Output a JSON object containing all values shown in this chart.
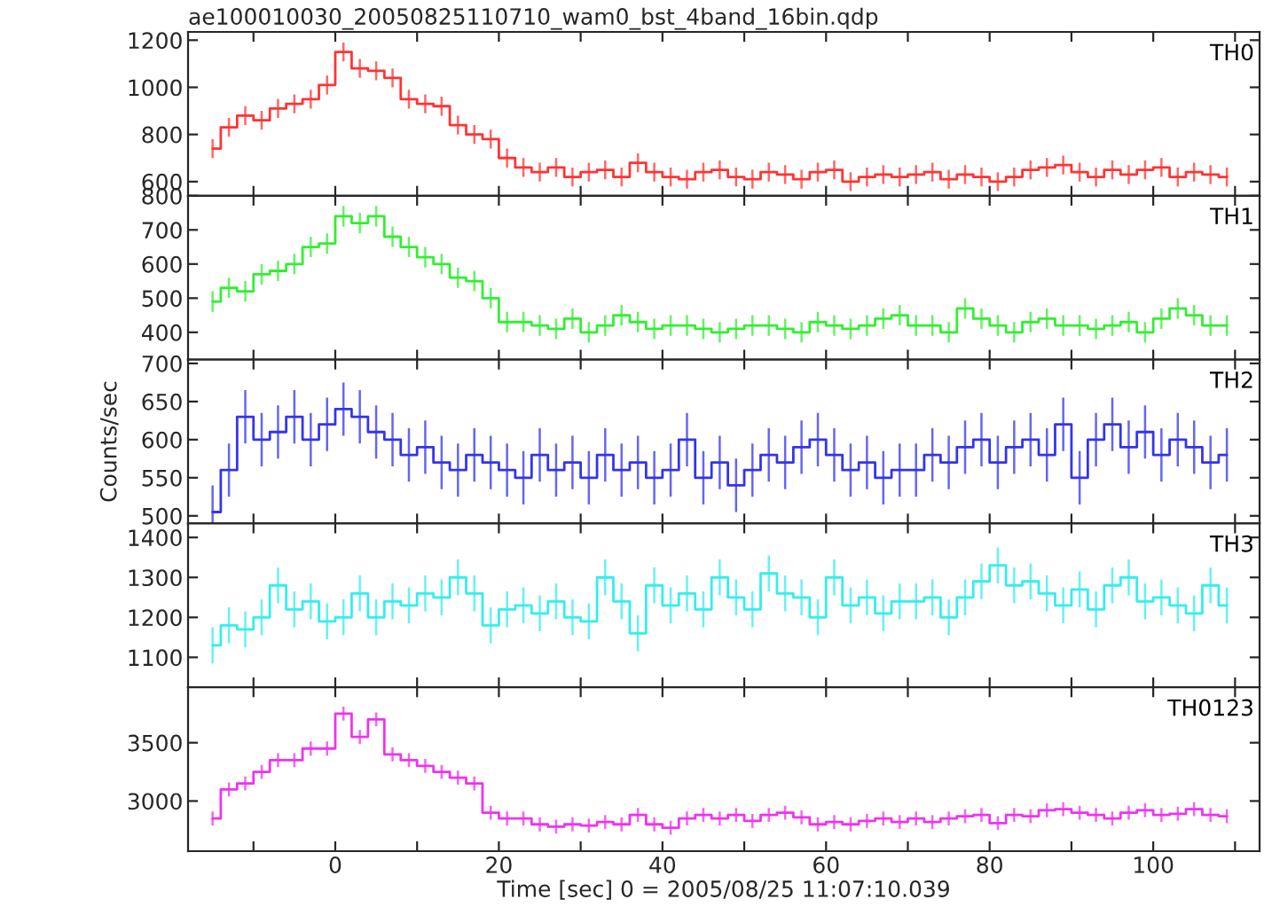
{
  "chart_data": [
    {
      "type": "step",
      "title": "ae100010030_20050825110710_wam0_bst_4band_16bin.qdp",
      "tick_labels": "y",
      "x": [
        -15,
        -13,
        -11,
        -9,
        -7,
        -5,
        -3,
        -1,
        1,
        3,
        5,
        7,
        9,
        11,
        13,
        15,
        17,
        19,
        21,
        23,
        25,
        27,
        29,
        31,
        33,
        35,
        37,
        39,
        41,
        43,
        45,
        47,
        49,
        51,
        53,
        55,
        57,
        59,
        61,
        63,
        65,
        67,
        69,
        71,
        73,
        75,
        77,
        79,
        81,
        83,
        85,
        87,
        89,
        91,
        93,
        95,
        97,
        99,
        101,
        103,
        105,
        107,
        109
      ],
      "xlim": [
        -18,
        113
      ],
      "xticks": [
        {
          "value": -10,
          "label": null
        },
        0,
        {
          "value": 10,
          "label": null
        },
        20,
        {
          "value": 30,
          "label": null
        },
        40,
        {
          "value": 50,
          "label": null
        },
        60,
        {
          "value": 70,
          "label": null
        },
        80,
        {
          "value": 90,
          "label": null
        },
        100,
        {
          "value": 110,
          "label": null
        }
      ],
      "ylim": [
        540,
        1235
      ],
      "yticks": [
        600,
        800,
        1000,
        1200
      ],
      "series": [
        {
          "name": "TH0",
          "color": "#ff3333",
          "values": [
            740,
            830,
            880,
            860,
            910,
            930,
            950,
            1010,
            1150,
            1080,
            1070,
            1040,
            950,
            930,
            920,
            840,
            800,
            780,
            700,
            660,
            640,
            660,
            620,
            640,
            650,
            620,
            680,
            640,
            620,
            610,
            640,
            650,
            620,
            610,
            640,
            630,
            610,
            640,
            650,
            600,
            620,
            630,
            620,
            630,
            640,
            610,
            630,
            620,
            600,
            620,
            650,
            660,
            670,
            640,
            620,
            650,
            630,
            650,
            660,
            620,
            640,
            630,
            620
          ],
          "errors": [
            40,
            40,
            40,
            40,
            40,
            40,
            40,
            40,
            40,
            40,
            40,
            40,
            40,
            40,
            40,
            40,
            40,
            40,
            40,
            40,
            40,
            40,
            40,
            40,
            40,
            40,
            40,
            40,
            40,
            40,
            40,
            40,
            40,
            40,
            40,
            40,
            40,
            40,
            40,
            40,
            40,
            40,
            40,
            40,
            40,
            40,
            40,
            40,
            40,
            40,
            40,
            40,
            40,
            40,
            40,
            40,
            40,
            40,
            40,
            40,
            40,
            40,
            40
          ]
        }
      ]
    },
    {
      "type": "step",
      "tick_labels": "y",
      "x": [
        -15,
        -13,
        -11,
        -9,
        -7,
        -5,
        -3,
        -1,
        1,
        3,
        5,
        7,
        9,
        11,
        13,
        15,
        17,
        19,
        21,
        23,
        25,
        27,
        29,
        31,
        33,
        35,
        37,
        39,
        41,
        43,
        45,
        47,
        49,
        51,
        53,
        55,
        57,
        59,
        61,
        63,
        65,
        67,
        69,
        71,
        73,
        75,
        77,
        79,
        81,
        83,
        85,
        87,
        89,
        91,
        93,
        95,
        97,
        99,
        101,
        103,
        105,
        107,
        109
      ],
      "xlim": [
        -18,
        113
      ],
      "xticks": [
        {
          "value": -10,
          "label": null
        },
        0,
        {
          "value": 10,
          "label": null
        },
        20,
        {
          "value": 30,
          "label": null
        },
        40,
        {
          "value": 50,
          "label": null
        },
        60,
        {
          "value": 70,
          "label": null
        },
        80,
        {
          "value": 90,
          "label": null
        },
        100,
        {
          "value": 110,
          "label": null
        }
      ],
      "ylim": [
        320,
        800
      ],
      "yticks": [
        400,
        500,
        600,
        700,
        800
      ],
      "series": [
        {
          "name": "TH1",
          "color": "#33ee33",
          "values": [
            490,
            530,
            520,
            570,
            580,
            600,
            650,
            660,
            740,
            720,
            740,
            680,
            650,
            620,
            600,
            560,
            550,
            500,
            430,
            430,
            420,
            410,
            440,
            400,
            420,
            450,
            430,
            410,
            420,
            420,
            410,
            400,
            410,
            420,
            420,
            410,
            400,
            430,
            420,
            410,
            420,
            440,
            450,
            420,
            420,
            400,
            470,
            440,
            420,
            400,
            430,
            440,
            420,
            420,
            410,
            420,
            430,
            400,
            440,
            470,
            450,
            420,
            420
          ],
          "errors": [
            30,
            30,
            30,
            30,
            30,
            30,
            30,
            30,
            30,
            30,
            30,
            30,
            30,
            30,
            30,
            30,
            30,
            30,
            30,
            30,
            30,
            30,
            30,
            30,
            30,
            30,
            30,
            30,
            30,
            30,
            30,
            30,
            30,
            30,
            30,
            30,
            30,
            30,
            30,
            30,
            30,
            30,
            30,
            30,
            30,
            30,
            30,
            30,
            30,
            30,
            30,
            30,
            30,
            30,
            30,
            30,
            30,
            30,
            30,
            30,
            30,
            30,
            30
          ]
        }
      ]
    },
    {
      "type": "step",
      "tick_labels": "y",
      "ylabel": "Counts/sec",
      "x": [
        -15,
        -13,
        -11,
        -9,
        -7,
        -5,
        -3,
        -1,
        1,
        3,
        5,
        7,
        9,
        11,
        13,
        15,
        17,
        19,
        21,
        23,
        25,
        27,
        29,
        31,
        33,
        35,
        37,
        39,
        41,
        43,
        45,
        47,
        49,
        51,
        53,
        55,
        57,
        59,
        61,
        63,
        65,
        67,
        69,
        71,
        73,
        75,
        77,
        79,
        81,
        83,
        85,
        87,
        89,
        91,
        93,
        95,
        97,
        99,
        101,
        103,
        105,
        107,
        109
      ],
      "xlim": [
        -18,
        113
      ],
      "xticks": [
        {
          "value": -10,
          "label": null
        },
        0,
        {
          "value": 10,
          "label": null
        },
        20,
        {
          "value": 30,
          "label": null
        },
        40,
        {
          "value": 50,
          "label": null
        },
        60,
        {
          "value": 70,
          "label": null
        },
        80,
        {
          "value": 90,
          "label": null
        },
        100,
        {
          "value": 110,
          "label": null
        }
      ],
      "ylim": [
        490,
        705
      ],
      "yticks": [
        500,
        550,
        600,
        650,
        700
      ],
      "series": [
        {
          "name": "TH2",
          "color": "#3333ee",
          "values": [
            505,
            560,
            630,
            600,
            610,
            630,
            600,
            620,
            640,
            630,
            610,
            600,
            580,
            590,
            570,
            560,
            580,
            570,
            560,
            550,
            580,
            560,
            570,
            550,
            580,
            560,
            570,
            550,
            560,
            600,
            550,
            570,
            540,
            560,
            580,
            570,
            590,
            600,
            580,
            560,
            570,
            550,
            560,
            560,
            580,
            570,
            590,
            600,
            570,
            590,
            600,
            580,
            620,
            550,
            600,
            620,
            590,
            610,
            580,
            600,
            590,
            570,
            580
          ],
          "errors": [
            35,
            35,
            35,
            35,
            35,
            35,
            35,
            35,
            35,
            35,
            35,
            35,
            35,
            35,
            35,
            35,
            35,
            35,
            35,
            35,
            35,
            35,
            35,
            35,
            35,
            35,
            35,
            35,
            35,
            35,
            35,
            35,
            35,
            35,
            35,
            35,
            35,
            35,
            35,
            35,
            35,
            35,
            35,
            35,
            35,
            35,
            35,
            35,
            35,
            35,
            35,
            35,
            35,
            35,
            35,
            35,
            35,
            35,
            35,
            35,
            35,
            35,
            35
          ]
        }
      ]
    },
    {
      "type": "step",
      "tick_labels": "y",
      "x": [
        -15,
        -13,
        -11,
        -9,
        -7,
        -5,
        -3,
        -1,
        1,
        3,
        5,
        7,
        9,
        11,
        13,
        15,
        17,
        19,
        21,
        23,
        25,
        27,
        29,
        31,
        33,
        35,
        37,
        39,
        41,
        43,
        45,
        47,
        49,
        51,
        53,
        55,
        57,
        59,
        61,
        63,
        65,
        67,
        69,
        71,
        73,
        75,
        77,
        79,
        81,
        83,
        85,
        87,
        89,
        91,
        93,
        95,
        97,
        99,
        101,
        103,
        105,
        107,
        109
      ],
      "xlim": [
        -18,
        113
      ],
      "xticks": [
        {
          "value": -10,
          "label": null
        },
        0,
        {
          "value": 10,
          "label": null
        },
        20,
        {
          "value": 30,
          "label": null
        },
        40,
        {
          "value": 50,
          "label": null
        },
        60,
        {
          "value": 70,
          "label": null
        },
        80,
        {
          "value": 90,
          "label": null
        },
        100,
        {
          "value": 110,
          "label": null
        }
      ],
      "ylim": [
        1025,
        1435
      ],
      "yticks": [
        1100,
        1200,
        1300,
        1400
      ],
      "series": [
        {
          "name": "TH3",
          "color": "#33eeee",
          "values": [
            1130,
            1180,
            1170,
            1200,
            1280,
            1220,
            1240,
            1190,
            1200,
            1260,
            1200,
            1240,
            1230,
            1260,
            1250,
            1300,
            1260,
            1180,
            1220,
            1230,
            1210,
            1240,
            1200,
            1190,
            1300,
            1240,
            1160,
            1280,
            1230,
            1260,
            1220,
            1300,
            1250,
            1220,
            1310,
            1260,
            1250,
            1200,
            1300,
            1230,
            1250,
            1210,
            1240,
            1240,
            1250,
            1200,
            1250,
            1290,
            1330,
            1280,
            1290,
            1260,
            1230,
            1270,
            1220,
            1280,
            1300,
            1240,
            1250,
            1230,
            1210,
            1280,
            1230
          ],
          "errors": [
            45,
            45,
            45,
            45,
            45,
            45,
            45,
            45,
            45,
            45,
            45,
            45,
            45,
            45,
            45,
            45,
            45,
            45,
            45,
            45,
            45,
            45,
            45,
            45,
            45,
            45,
            45,
            45,
            45,
            45,
            45,
            45,
            45,
            45,
            45,
            45,
            45,
            45,
            45,
            45,
            45,
            45,
            45,
            45,
            45,
            45,
            45,
            45,
            45,
            45,
            45,
            45,
            45,
            45,
            45,
            45,
            45,
            45,
            45,
            45,
            45,
            45,
            45
          ]
        }
      ]
    },
    {
      "type": "step",
      "xlabel": "Time [sec] 0 = 2005/08/25 11:07:10.039",
      "x": [
        -15,
        -13,
        -11,
        -9,
        -7,
        -5,
        -3,
        -1,
        1,
        3,
        5,
        7,
        9,
        11,
        13,
        15,
        17,
        19,
        21,
        23,
        25,
        27,
        29,
        31,
        33,
        35,
        37,
        39,
        41,
        43,
        45,
        47,
        49,
        51,
        53,
        55,
        57,
        59,
        61,
        63,
        65,
        67,
        69,
        71,
        73,
        75,
        77,
        79,
        81,
        83,
        85,
        87,
        89,
        91,
        93,
        95,
        97,
        99,
        101,
        103,
        105,
        107,
        109
      ],
      "xlim": [
        -18,
        113
      ],
      "xticks": [
        {
          "value": -10,
          "label": null
        },
        0,
        {
          "value": 10,
          "label": null
        },
        20,
        {
          "value": 30,
          "label": null
        },
        40,
        {
          "value": 50,
          "label": null
        },
        60,
        {
          "value": 70,
          "label": null
        },
        80,
        {
          "value": 90,
          "label": null
        },
        100,
        {
          "value": 110,
          "label": null
        }
      ],
      "ylim": [
        2570,
        3975
      ],
      "yticks": [
        3000,
        3500
      ],
      "series": [
        {
          "name": "TH0123",
          "color": "#ee33ee",
          "values": [
            2850,
            3100,
            3150,
            3250,
            3350,
            3350,
            3450,
            3450,
            3750,
            3550,
            3700,
            3400,
            3350,
            3300,
            3250,
            3200,
            3150,
            2900,
            2850,
            2850,
            2800,
            2780,
            2800,
            2790,
            2820,
            2800,
            2880,
            2800,
            2770,
            2850,
            2880,
            2850,
            2880,
            2830,
            2880,
            2900,
            2860,
            2800,
            2820,
            2800,
            2830,
            2850,
            2820,
            2850,
            2820,
            2850,
            2870,
            2880,
            2810,
            2880,
            2870,
            2920,
            2930,
            2900,
            2880,
            2850,
            2900,
            2920,
            2880,
            2890,
            2930,
            2880,
            2870
          ],
          "errors": [
            60,
            60,
            60,
            60,
            60,
            60,
            60,
            60,
            60,
            60,
            60,
            60,
            60,
            60,
            60,
            60,
            60,
            60,
            60,
            60,
            60,
            60,
            60,
            60,
            60,
            60,
            60,
            60,
            60,
            60,
            60,
            60,
            60,
            60,
            60,
            60,
            60,
            60,
            60,
            60,
            60,
            60,
            60,
            60,
            60,
            60,
            60,
            60,
            60,
            60,
            60,
            60,
            60,
            60,
            60,
            60,
            60,
            60,
            60,
            60,
            60,
            60,
            60
          ]
        }
      ]
    }
  ]
}
